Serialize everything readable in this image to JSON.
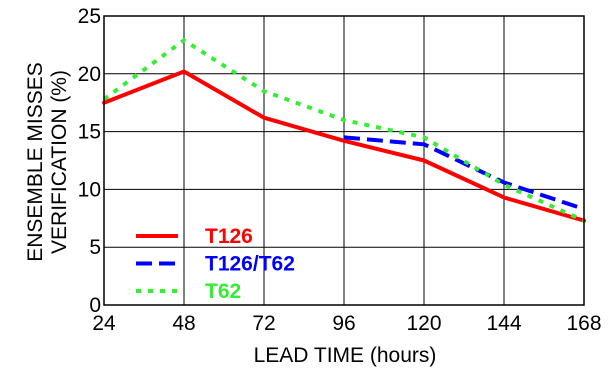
{
  "chart_data": {
    "type": "line",
    "xlabel": "LEAD TIME (hours)",
    "ylabel_lines": [
      "ENSEMBLE MISSES",
      "VERIFICATION (%)"
    ],
    "x_ticks": [
      24,
      48,
      72,
      96,
      120,
      144,
      168
    ],
    "y_ticks": [
      0,
      5,
      10,
      15,
      20,
      25
    ],
    "xlim": [
      24,
      168
    ],
    "ylim": [
      0,
      25
    ],
    "grid": true,
    "legend_position": "bottom-left",
    "series": [
      {
        "name": "T126",
        "color": "#ff0000",
        "style": "solid",
        "x": [
          24,
          48,
          72,
          96,
          120,
          144,
          168
        ],
        "y": [
          17.5,
          20.2,
          16.2,
          14.2,
          12.5,
          9.3,
          7.3
        ]
      },
      {
        "name": "T126/T62",
        "color": "#0000ff",
        "style": "dashed",
        "x": [
          96,
          120,
          144,
          168
        ],
        "y": [
          14.5,
          13.9,
          10.6,
          8.3
        ]
      },
      {
        "name": "T62",
        "color": "#33ee33",
        "style": "dotted",
        "x": [
          24,
          48,
          72,
          96,
          120,
          144,
          168
        ],
        "y": [
          17.8,
          22.9,
          18.5,
          16.0,
          14.5,
          10.4,
          7.3
        ]
      }
    ]
  }
}
